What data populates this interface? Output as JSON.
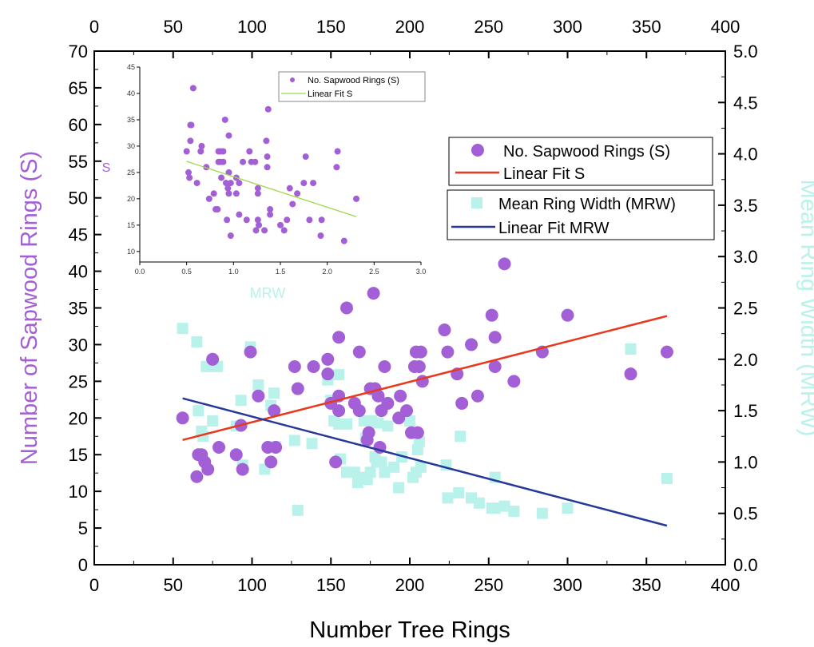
{
  "colors": {
    "sapwood": "#a35fd6",
    "mrw": "#b9f2ea",
    "fit_s": "#e8391d",
    "fit_mrw": "#26399a",
    "inset_fit": "#9bd94a",
    "right_label": "#b9f2ea"
  },
  "chart_data": [
    {
      "type": "scatter",
      "xlabel": "Number Tree Rings",
      "ylabel": "Number of Sapwood Rings (S)",
      "y2label": "Mean Ring Width (MRW)",
      "xlim": [
        0,
        400
      ],
      "ylim": [
        0,
        70
      ],
      "y2lim": [
        0,
        5
      ],
      "grid": false,
      "xticks": [
        "0",
        "50",
        "100",
        "150",
        "200",
        "250",
        "300",
        "350",
        "400"
      ],
      "yticks": [
        "0",
        "5",
        "10",
        "15",
        "20",
        "25",
        "30",
        "35",
        "40",
        "45",
        "50",
        "55",
        "60",
        "65",
        "70"
      ],
      "y2ticks": [
        "0.0",
        "0.5",
        "1.0",
        "1.5",
        "2.0",
        "2.5",
        "3.0",
        "3.5",
        "4.0",
        "4.5",
        "5.0"
      ],
      "legend": [
        "No. Sapwood Rings (S)",
        "Linear Fit S",
        "Mean Ring Width (MRW)",
        "Linear Fit MRW"
      ],
      "legend_placement": "right",
      "series": [
        {
          "name": "No. Sapwood Rings (S)",
          "axis": "left",
          "points": [
            [
              56,
              20
            ],
            [
              65,
              12
            ],
            [
              66,
              15
            ],
            [
              68,
              15
            ],
            [
              70,
              14
            ],
            [
              72,
              13
            ],
            [
              75,
              28
            ],
            [
              79,
              16
            ],
            [
              90,
              15
            ],
            [
              93,
              19
            ],
            [
              94,
              13
            ],
            [
              99,
              29
            ],
            [
              104,
              23
            ],
            [
              110,
              16
            ],
            [
              112,
              14
            ],
            [
              114,
              21
            ],
            [
              115,
              16
            ],
            [
              127,
              27
            ],
            [
              129,
              24
            ],
            [
              139,
              27
            ],
            [
              148,
              28
            ],
            [
              148,
              26
            ],
            [
              150,
              22
            ],
            [
              153,
              14
            ],
            [
              155,
              31
            ],
            [
              155,
              23
            ],
            [
              155,
              21
            ],
            [
              160,
              35
            ],
            [
              165,
              22
            ],
            [
              168,
              29
            ],
            [
              168,
              21
            ],
            [
              173,
              17
            ],
            [
              174,
              18
            ],
            [
              175,
              24
            ],
            [
              177,
              37
            ],
            [
              178,
              24
            ],
            [
              180,
              23
            ],
            [
              181,
              16
            ],
            [
              182,
              21
            ],
            [
              184,
              27
            ],
            [
              186,
              22
            ],
            [
              193,
              20
            ],
            [
              194,
              23
            ],
            [
              198,
              21
            ],
            [
              201,
              18
            ],
            [
              203,
              27
            ],
            [
              204,
              29
            ],
            [
              205,
              18
            ],
            [
              206,
              27
            ],
            [
              207,
              29
            ],
            [
              208,
              25
            ],
            [
              222,
              32
            ],
            [
              224,
              29
            ],
            [
              230,
              26
            ],
            [
              233,
              22
            ],
            [
              239,
              30
            ],
            [
              243,
              23
            ],
            [
              252,
              34
            ],
            [
              254,
              31
            ],
            [
              254,
              27
            ],
            [
              260,
              41
            ],
            [
              266,
              25
            ],
            [
              284,
              29
            ],
            [
              300,
              34
            ],
            [
              340,
              26
            ],
            [
              363,
              29
            ]
          ]
        },
        {
          "name": "Linear Fit S",
          "axis": "left",
          "line": [
            [
              56,
              17
            ],
            [
              363,
              33.9
            ]
          ]
        },
        {
          "name": "Mean Ring Width (MRW)",
          "axis": "right",
          "points": [
            [
              56,
              2.3
            ],
            [
              65,
              2.17
            ],
            [
              66,
              1.5
            ],
            [
              68,
              1.3
            ],
            [
              69,
              1.25
            ],
            [
              71,
              1.93
            ],
            [
              73,
              1.93
            ],
            [
              75,
              1.4
            ],
            [
              78,
              1.93
            ],
            [
              90,
              1.35
            ],
            [
              93,
              1.6
            ],
            [
              94,
              0.97
            ],
            [
              99,
              2.12
            ],
            [
              104,
              1.75
            ],
            [
              108,
              0.93
            ],
            [
              112,
              1.55
            ],
            [
              114,
              1.67
            ],
            [
              115,
              1.15
            ],
            [
              127,
              1.21
            ],
            [
              129,
              0.53
            ],
            [
              138,
              1.18
            ],
            [
              148,
              1.8
            ],
            [
              150,
              1.6
            ],
            [
              152,
              1.4
            ],
            [
              155,
              1.37
            ],
            [
              155,
              1.85
            ],
            [
              156,
              1.03
            ],
            [
              160,
              0.9
            ],
            [
              160,
              1.37
            ],
            [
              165,
              0.9
            ],
            [
              167,
              0.8
            ],
            [
              169,
              0.85
            ],
            [
              171,
              1.4
            ],
            [
              172,
              1.23
            ],
            [
              173,
              0.83
            ],
            [
              175,
              0.9
            ],
            [
              176,
              1.4
            ],
            [
              178,
              1.05
            ],
            [
              179,
              1.0
            ],
            [
              180,
              1.38
            ],
            [
              182,
              1.0
            ],
            [
              184,
              0.9
            ],
            [
              186,
              1.35
            ],
            [
              190,
              0.95
            ],
            [
              193,
              0.75
            ],
            [
              195,
              1.05
            ],
            [
              200,
              1.4
            ],
            [
              202,
              0.85
            ],
            [
              204,
              0.9
            ],
            [
              205,
              1.12
            ],
            [
              206,
              1.2
            ],
            [
              207,
              0.95
            ],
            [
              223,
              0.97
            ],
            [
              224,
              0.65
            ],
            [
              231,
              0.7
            ],
            [
              232,
              1.25
            ],
            [
              239,
              0.65
            ],
            [
              244,
              0.6
            ],
            [
              252,
              0.55
            ],
            [
              254,
              0.55
            ],
            [
              254,
              0.85
            ],
            [
              260,
              0.57
            ],
            [
              266,
              0.52
            ],
            [
              284,
              0.5
            ],
            [
              300,
              0.55
            ],
            [
              340,
              2.1
            ],
            [
              363,
              0.84
            ]
          ]
        },
        {
          "name": "Linear Fit MRW",
          "axis": "right",
          "line": [
            [
              56,
              1.62
            ],
            [
              363,
              0.38
            ]
          ]
        }
      ]
    },
    {
      "type": "scatter",
      "inset": true,
      "xlabel": "MRW",
      "ylabel": "S",
      "xlim": [
        0,
        3
      ],
      "ylim": [
        8,
        45
      ],
      "xticks": [
        "0.0",
        "0.5",
        "1.0",
        "1.5",
        "2.0",
        "2.5",
        "3.0"
      ],
      "yticks": [
        "10",
        "15",
        "20",
        "25",
        "30",
        "35",
        "40",
        "45"
      ],
      "legend": [
        "No. Sapwood Rings (S)",
        "Linear Fit S"
      ],
      "legend_placement": "top-right",
      "series": [
        {
          "name": "No. Sapwood Rings (S)",
          "points": [
            [
              0.5,
              29
            ],
            [
              0.57,
              41
            ],
            [
              0.54,
              34
            ],
            [
              0.55,
              34
            ],
            [
              0.54,
              31
            ],
            [
              0.52,
              25
            ],
            [
              0.53,
              24
            ],
            [
              0.61,
              23
            ],
            [
              0.65,
              29
            ],
            [
              0.66,
              30
            ],
            [
              0.71,
              26
            ],
            [
              0.74,
              20
            ],
            [
              0.79,
              21
            ],
            [
              0.81,
              18
            ],
            [
              0.83,
              18
            ],
            [
              0.84,
              29
            ],
            [
              0.86,
              29
            ],
            [
              0.89,
              29
            ],
            [
              0.84,
              27
            ],
            [
              0.86,
              27
            ],
            [
              0.89,
              27
            ],
            [
              0.87,
              24
            ],
            [
              0.91,
              35
            ],
            [
              0.95,
              32
            ],
            [
              0.92,
              23
            ],
            [
              0.94,
              22
            ],
            [
              0.95,
              21
            ],
            [
              0.95,
              25
            ],
            [
              0.97,
              23
            ],
            [
              0.93,
              16
            ],
            [
              0.97,
              13
            ],
            [
              1.03,
              24
            ],
            [
              1.03,
              21
            ],
            [
              1.06,
              23
            ],
            [
              1.06,
              17
            ],
            [
              1.1,
              27
            ],
            [
              1.14,
              16
            ],
            [
              1.17,
              29
            ],
            [
              1.19,
              27
            ],
            [
              1.23,
              27
            ],
            [
              1.26,
              22
            ],
            [
              1.26,
              21
            ],
            [
              1.26,
              16
            ],
            [
              1.27,
              15
            ],
            [
              1.24,
              14
            ],
            [
              1.33,
              14
            ],
            [
              1.35,
              31
            ],
            [
              1.37,
              37
            ],
            [
              1.36,
              28
            ],
            [
              1.36,
              26
            ],
            [
              1.39,
              18
            ],
            [
              1.39,
              17
            ],
            [
              1.5,
              15
            ],
            [
              1.54,
              14
            ],
            [
              1.57,
              16
            ],
            [
              1.6,
              22
            ],
            [
              1.63,
              19
            ],
            [
              1.68,
              21
            ],
            [
              1.75,
              23
            ],
            [
              1.77,
              28
            ],
            [
              1.81,
              16
            ],
            [
              1.85,
              23
            ],
            [
              1.93,
              13
            ],
            [
              1.94,
              16
            ],
            [
              2.1,
              26
            ],
            [
              2.11,
              29
            ],
            [
              2.18,
              12
            ],
            [
              2.31,
              20
            ]
          ]
        },
        {
          "name": "Linear Fit S",
          "line": [
            [
              0.5,
              27.1
            ],
            [
              2.31,
              16.6
            ]
          ]
        }
      ]
    }
  ]
}
